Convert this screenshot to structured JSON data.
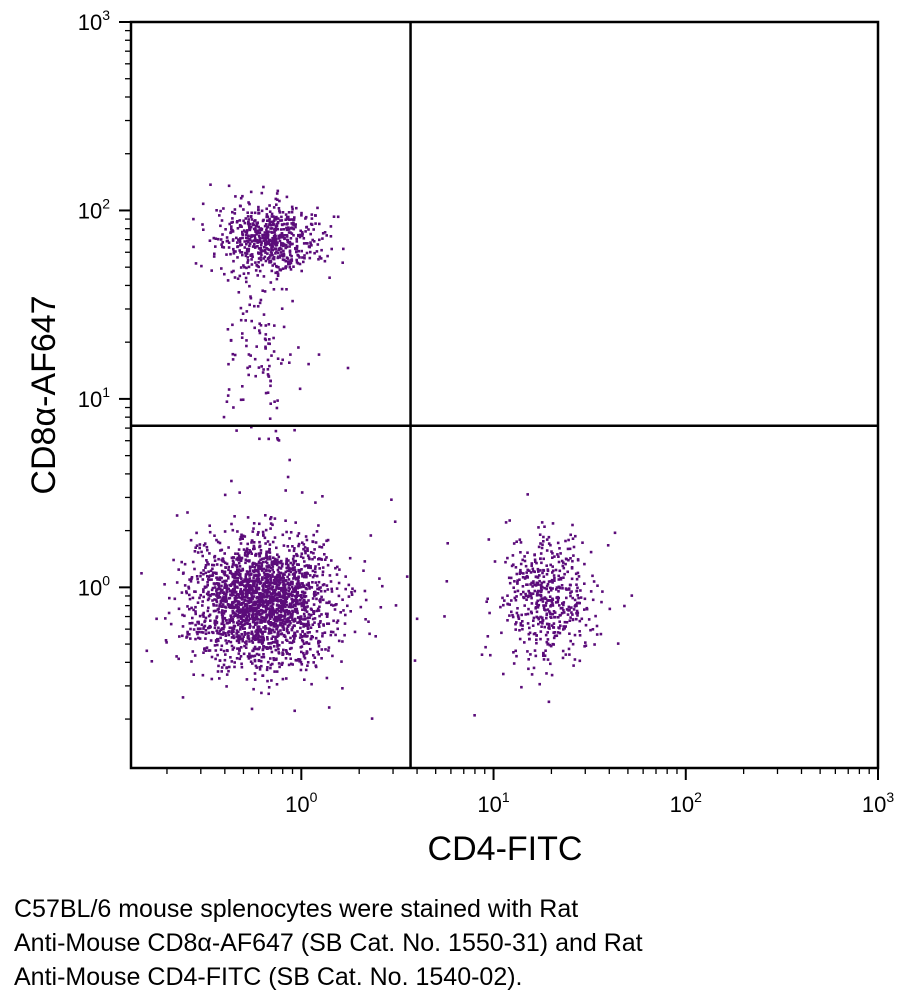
{
  "chart_data": {
    "type": "scatter",
    "title": "",
    "xlabel": "CD4-FITC",
    "ylabel": "CD8α-AF647",
    "xscale": "log",
    "yscale": "log",
    "xlim": [
      0.13,
      1000
    ],
    "ylim": [
      0.11,
      1000
    ],
    "x_ticks": [
      {
        "base": "10",
        "exp": "0",
        "value": 1
      },
      {
        "base": "10",
        "exp": "1",
        "value": 10
      },
      {
        "base": "10",
        "exp": "2",
        "value": 100
      },
      {
        "base": "10",
        "exp": "3",
        "value": 1000
      }
    ],
    "y_ticks": [
      {
        "base": "10",
        "exp": "0",
        "value": 1
      },
      {
        "base": "10",
        "exp": "1",
        "value": 10
      },
      {
        "base": "10",
        "exp": "2",
        "value": 100
      },
      {
        "base": "10",
        "exp": "3",
        "value": 1000
      }
    ],
    "quadrant_gates": {
      "x": 3.7,
      "y": 7.2
    },
    "point_color": "#5b0c7a",
    "series": [
      {
        "name": "CD8+ CD4- (upper left)",
        "center": [
          0.68,
          70
        ],
        "spread_log10": [
          0.13,
          0.09
        ],
        "count": 650
      },
      {
        "name": "CD8+ trailing",
        "center": [
          0.65,
          20
        ],
        "spread_log10": [
          0.11,
          0.25
        ],
        "count": 110
      },
      {
        "name": "CD4- CD8- (lower left)",
        "center": [
          0.62,
          0.85
        ],
        "spread_log10": [
          0.18,
          0.17
        ],
        "count": 2300
      },
      {
        "name": "CD4+ CD8- (lower right)",
        "center": [
          19,
          0.88
        ],
        "spread_log10": [
          0.12,
          0.17
        ],
        "count": 520
      },
      {
        "name": "scattered events",
        "center": [
          1.5,
          1.2
        ],
        "spread_log10": [
          0.45,
          0.45
        ],
        "count": 60
      }
    ]
  },
  "caption": {
    "line1": "C57BL/6 mouse splenocytes were stained with Rat",
    "line2": "Anti-Mouse CD8α-AF647 (SB Cat. No. 1550-31) and Rat",
    "line3": "Anti-Mouse CD4-FITC (SB Cat. No. 1540-02)."
  }
}
